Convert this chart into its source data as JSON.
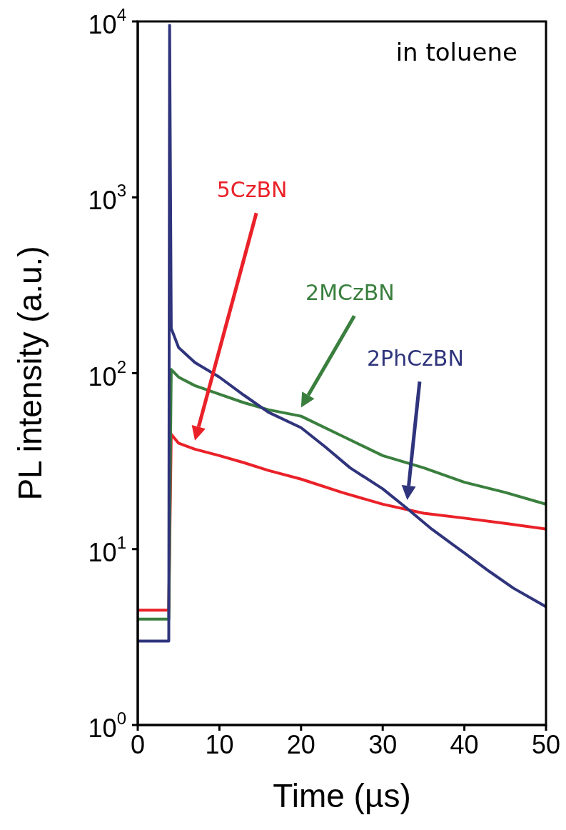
{
  "chart_data": {
    "type": "line",
    "xlabel": "Time (µs)",
    "ylabel": "PL intensity (a.u.)",
    "log": "y",
    "xlim": [
      0,
      50
    ],
    "xticks": [
      0,
      10,
      20,
      30,
      40,
      50
    ],
    "ylim": [
      1,
      10000
    ],
    "yticks": [
      {
        "value": 1,
        "label": "10$^{0}$"
      },
      {
        "value": 10,
        "label": "10$^{1}$"
      },
      {
        "value": 100,
        "label": "10$^{2}$"
      },
      {
        "value": 1000,
        "label": "10$^{3}$"
      },
      {
        "value": 10000,
        "label": "10$^{4}$"
      }
    ],
    "marker": "none",
    "line_style": "solid",
    "annotations": [
      "in toluene"
    ],
    "series": [
      {
        "name": "5CzBN",
        "color": "#ea2128",
        "x": [
          0,
          1,
          2,
          3,
          3.8,
          4.1,
          5,
          7,
          10,
          13,
          16,
          20,
          25,
          30,
          35,
          40,
          45,
          50
        ],
        "values": [
          4.5,
          4.5,
          4.5,
          4.5,
          4.5,
          45,
          40,
          37,
          34,
          31,
          28,
          25,
          21,
          18,
          16,
          15,
          14,
          13
        ]
      },
      {
        "name": "2MCzBN",
        "color": "#3a7f3e",
        "x": [
          0,
          1,
          2,
          3,
          3.8,
          4.1,
          5,
          7,
          10,
          13,
          16,
          20,
          25,
          30,
          35,
          40,
          45,
          50
        ],
        "values": [
          4,
          4,
          4,
          4,
          4,
          105,
          95,
          85,
          76,
          68,
          62,
          57,
          44,
          34,
          29,
          24,
          21,
          18
        ]
      },
      {
        "name": "2PhCzBN",
        "color": "#2f347c",
        "x": [
          0,
          1,
          2,
          3,
          3.8,
          3.9,
          4.1,
          5,
          7,
          10,
          13,
          16,
          20,
          23,
          26,
          30,
          33,
          36,
          40,
          43,
          46,
          50
        ],
        "values": [
          3,
          3,
          3,
          3,
          3,
          9500,
          180,
          140,
          115,
          95,
          75,
          60,
          49,
          38,
          29,
          22,
          17,
          13,
          9.5,
          7.5,
          6,
          4.7
        ]
      }
    ]
  }
}
